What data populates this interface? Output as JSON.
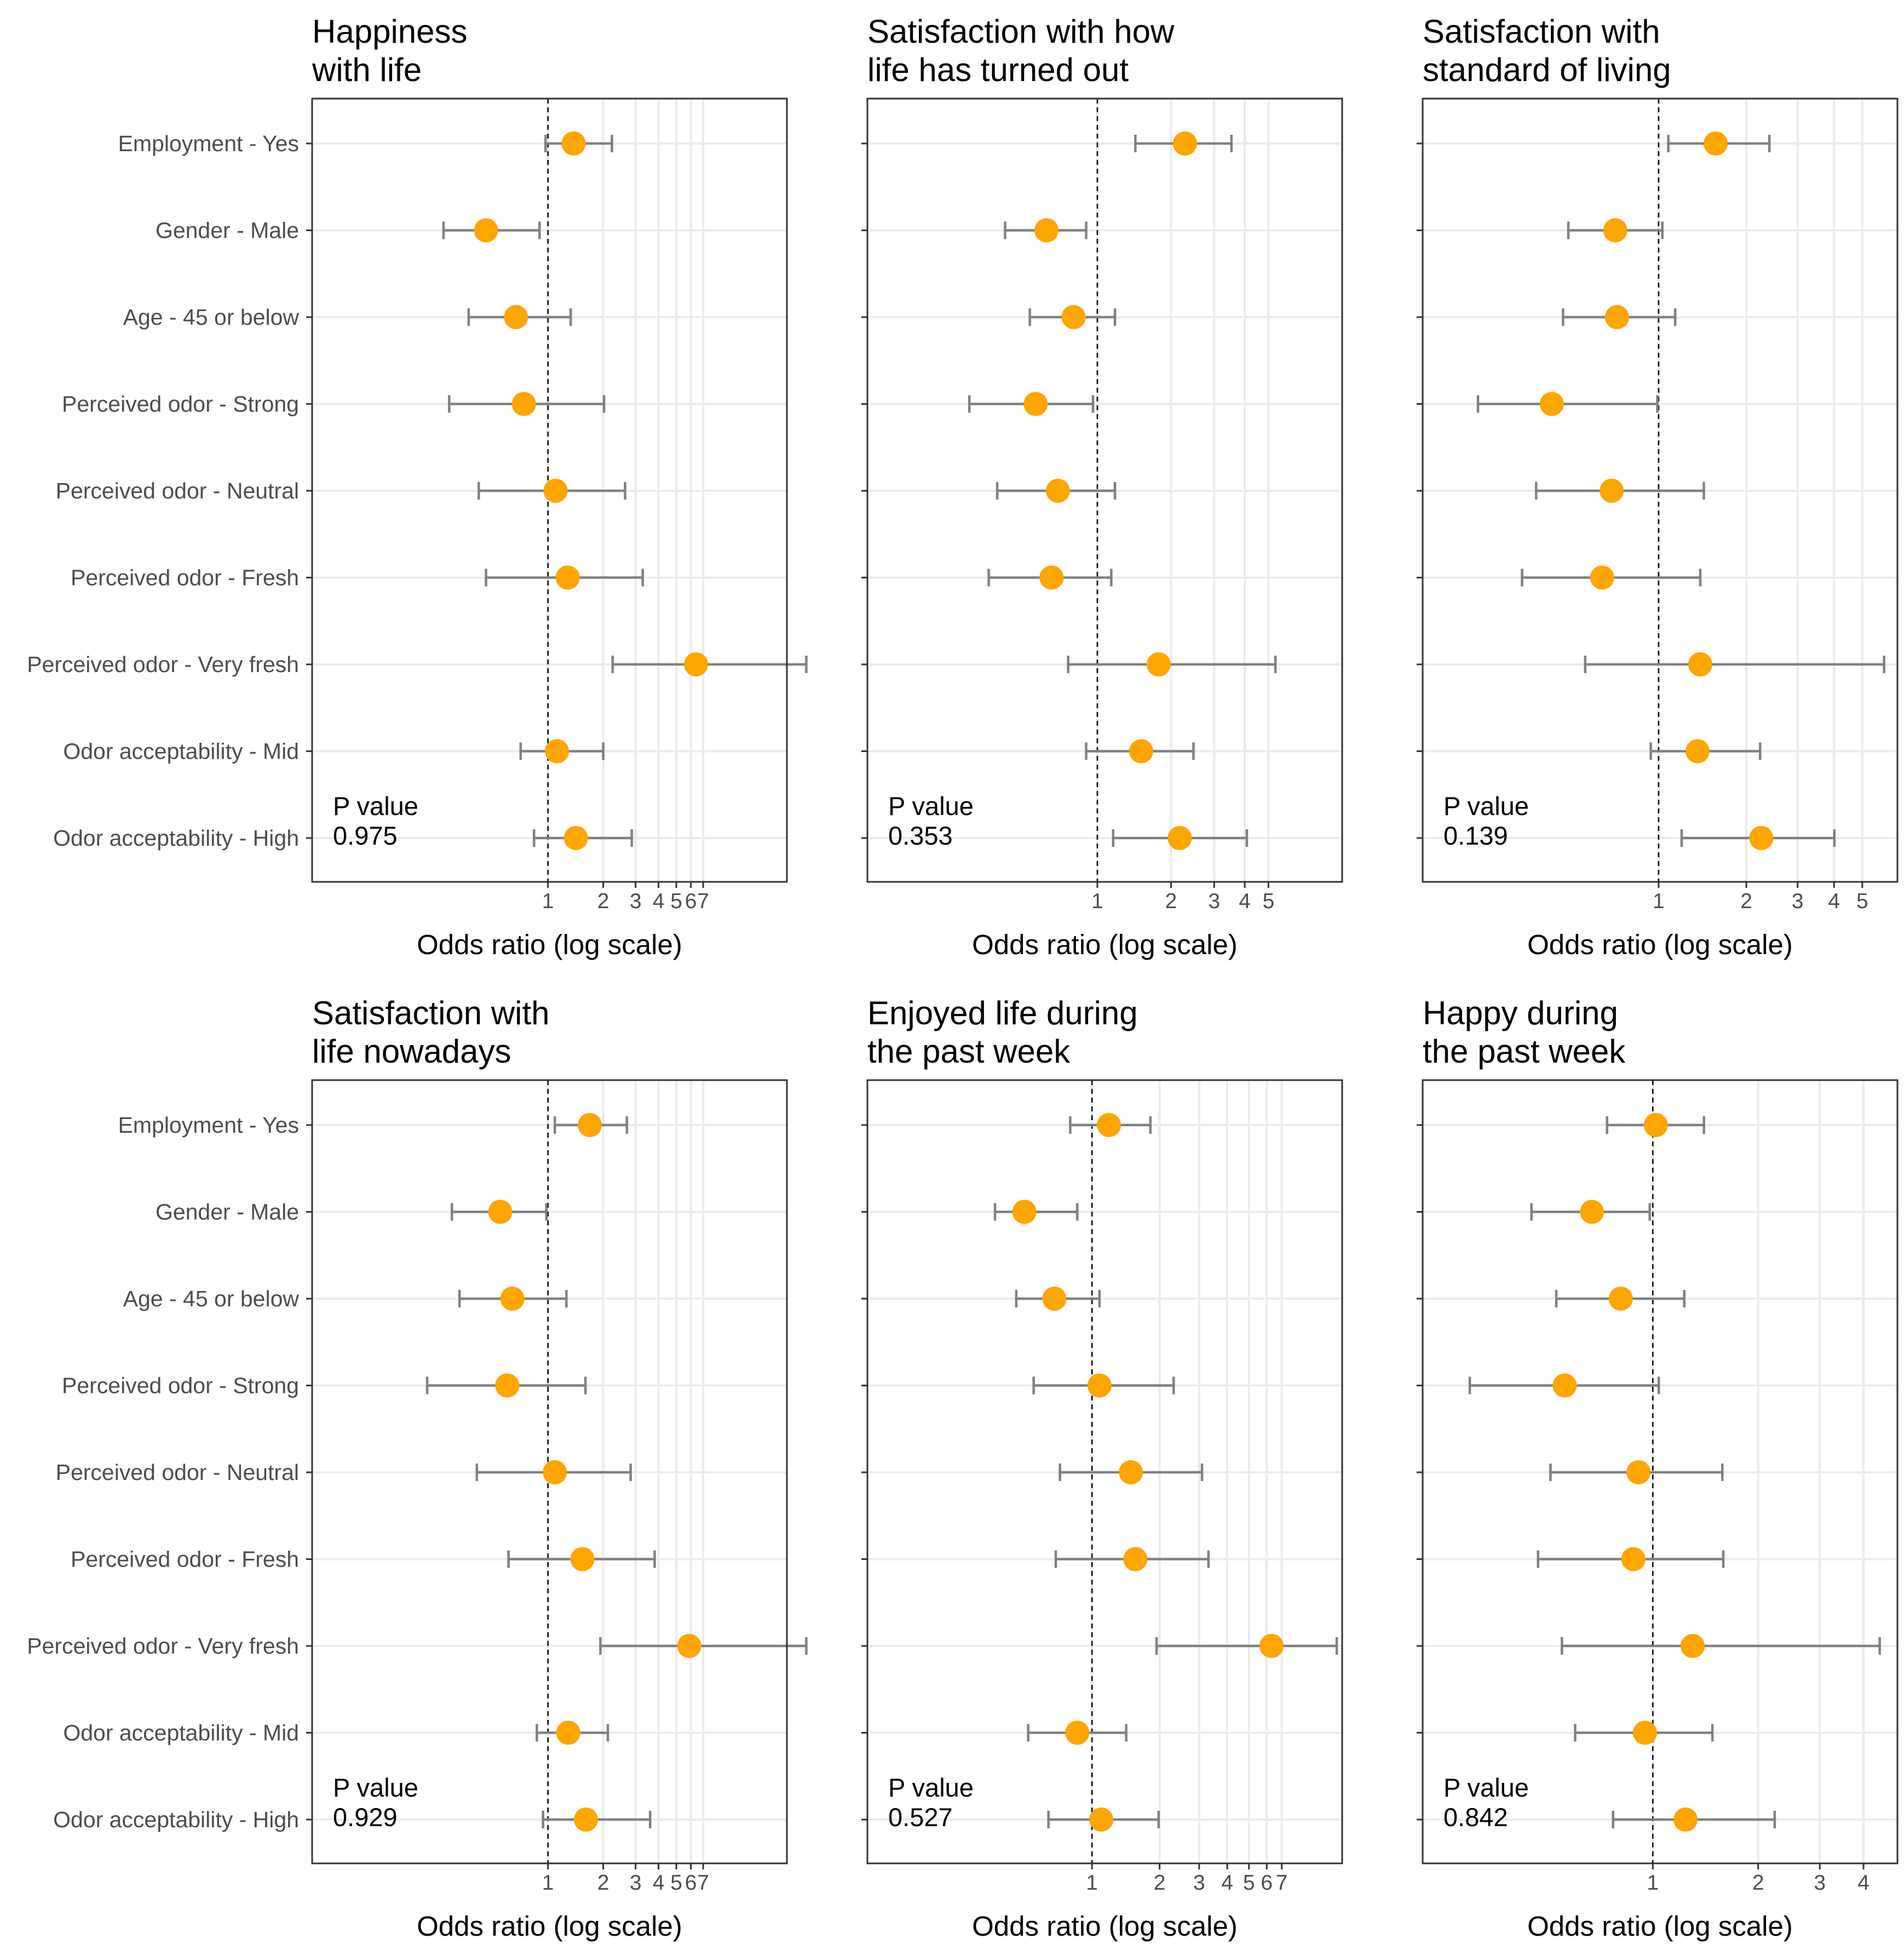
{
  "colors": {
    "point": "#FFA500",
    "errorbar": "#808080",
    "grid": "#EBEBEB",
    "panel_border": "#333333",
    "refline": "#000000"
  },
  "categories": [
    "Employment - Yes",
    "Gender - Male",
    "Age - 45 or below",
    "Perceived odor - Strong",
    "Perceived odor - Neutral",
    "Perceived odor - Fresh",
    "Perceived odor - Very fresh",
    "Odor acceptability - Mid",
    "Odor acceptability - High"
  ],
  "p_value_label": "P value",
  "chart_data": [
    {
      "type": "scatter",
      "title": [
        "Happiness",
        "with life"
      ],
      "xlabel": "Odds ratio (log scale)",
      "xscale": "log",
      "xlim": [
        0.052,
        20.0
      ],
      "xticks": [
        1,
        2,
        3,
        4,
        5,
        6,
        7
      ],
      "xtick_labels": [
        "1",
        "2",
        "3",
        "4",
        "5",
        "6",
        "7"
      ],
      "reference_line": 1,
      "p_value": "0.975",
      "estimates": [
        1.38,
        0.46,
        0.67,
        0.74,
        1.1,
        1.28,
        6.4,
        1.12,
        1.42
      ],
      "lower": [
        0.97,
        0.27,
        0.37,
        0.29,
        0.42,
        0.46,
        2.25,
        0.71,
        0.84
      ],
      "upper": [
        2.23,
        0.9,
        1.33,
        2.02,
        2.63,
        3.28,
        25.5,
        2.0,
        2.86
      ]
    },
    {
      "type": "scatter",
      "title": [
        "Satisfaction with how",
        "life has turned out"
      ],
      "xlabel": "Odds ratio (log scale)",
      "xscale": "log",
      "xlim": [
        0.115,
        10.0
      ],
      "xticks": [
        1,
        2,
        3,
        4,
        5
      ],
      "xtick_labels": [
        "1",
        "2",
        "3",
        "4",
        "5"
      ],
      "reference_line": 1,
      "p_value": "0.353",
      "estimates": [
        2.28,
        0.62,
        0.8,
        0.56,
        0.69,
        0.65,
        1.78,
        1.51,
        2.17
      ],
      "lower": [
        1.43,
        0.42,
        0.53,
        0.3,
        0.39,
        0.36,
        0.76,
        0.9,
        1.16
      ],
      "upper": [
        3.53,
        0.9,
        1.18,
        0.96,
        1.18,
        1.14,
        5.34,
        2.47,
        4.08
      ]
    },
    {
      "type": "scatter",
      "title": [
        "Satisfaction with",
        "standard of living"
      ],
      "xlabel": "Odds ratio (log scale)",
      "xscale": "log",
      "xlim": [
        0.155,
        6.6
      ],
      "xticks": [
        1,
        2,
        3,
        4,
        5
      ],
      "xtick_labels": [
        "1",
        "2",
        "3",
        "4",
        "5"
      ],
      "reference_line": 1,
      "p_value": "0.139",
      "estimates": [
        1.57,
        0.71,
        0.72,
        0.43,
        0.69,
        0.64,
        1.39,
        1.36,
        2.25
      ],
      "lower": [
        1.08,
        0.49,
        0.47,
        0.24,
        0.38,
        0.34,
        0.56,
        0.94,
        1.2
      ],
      "upper": [
        2.4,
        1.03,
        1.14,
        0.99,
        1.43,
        1.39,
        5.94,
        2.23,
        4.01
      ]
    },
    {
      "type": "scatter",
      "title": [
        "Satisfaction with",
        "life nowadays"
      ],
      "xlabel": "Odds ratio (log scale)",
      "xscale": "log",
      "xlim": [
        0.052,
        20.0
      ],
      "xticks": [
        1,
        2,
        3,
        4,
        5,
        6,
        7
      ],
      "xtick_labels": [
        "1",
        "2",
        "3",
        "4",
        "5",
        "6",
        "7"
      ],
      "reference_line": 1,
      "p_value": "0.929",
      "estimates": [
        1.69,
        0.55,
        0.64,
        0.6,
        1.09,
        1.54,
        5.88,
        1.29,
        1.61
      ],
      "lower": [
        1.09,
        0.3,
        0.33,
        0.22,
        0.41,
        0.61,
        1.93,
        0.87,
        0.94
      ],
      "upper": [
        2.69,
        0.98,
        1.26,
        1.6,
        2.82,
        3.81,
        25.5,
        2.12,
        3.6
      ]
    },
    {
      "type": "scatter",
      "title": [
        "Enjoyed life during",
        "the past week"
      ],
      "xlabel": "Odds ratio (log scale)",
      "xscale": "log",
      "xlim": [
        0.1,
        13.0
      ],
      "xticks": [
        1,
        2,
        3,
        4,
        5,
        6,
        7
      ],
      "xtick_labels": [
        "1",
        "2",
        "3",
        "4",
        "5",
        "6",
        "7"
      ],
      "reference_line": 1,
      "p_value": "0.527",
      "estimates": [
        1.19,
        0.5,
        0.68,
        1.08,
        1.49,
        1.56,
        6.3,
        0.86,
        1.1
      ],
      "lower": [
        0.8,
        0.37,
        0.46,
        0.55,
        0.72,
        0.69,
        1.94,
        0.52,
        0.64
      ],
      "upper": [
        1.82,
        0.86,
        1.08,
        2.31,
        3.09,
        3.3,
        12.3,
        1.42,
        1.98
      ]
    },
    {
      "type": "scatter",
      "title": [
        "Happy during",
        "the past week"
      ],
      "xlabel": "Odds ratio (log scale)",
      "xscale": "log",
      "xlim": [
        0.22,
        5.0
      ],
      "xticks": [
        1,
        2,
        3,
        4
      ],
      "xtick_labels": [
        "1",
        "2",
        "3",
        "4"
      ],
      "reference_line": 1,
      "p_value": "0.842",
      "estimates": [
        1.02,
        0.67,
        0.81,
        0.56,
        0.91,
        0.88,
        1.3,
        0.95,
        1.24
      ],
      "lower": [
        0.74,
        0.45,
        0.53,
        0.3,
        0.51,
        0.47,
        0.55,
        0.6,
        0.77
      ],
      "upper": [
        1.4,
        0.98,
        1.23,
        1.04,
        1.58,
        1.59,
        4.45,
        1.48,
        2.23
      ]
    }
  ]
}
